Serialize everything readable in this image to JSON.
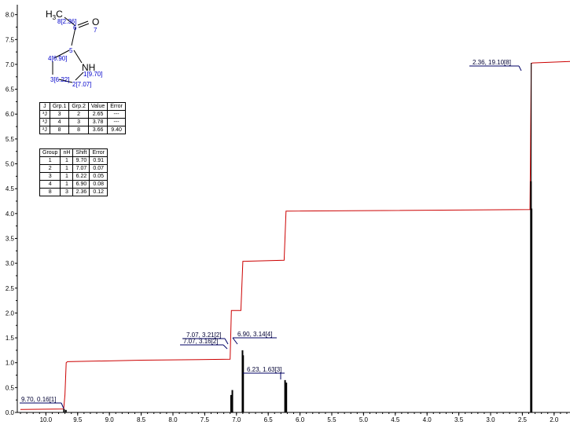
{
  "chart_data": {
    "type": "line",
    "title": "",
    "xlabel": "",
    "ylabel": "",
    "x_axis": {
      "min": 1.75,
      "max": 10.45,
      "reversed": true,
      "ticks": [
        "10.0",
        "9.5",
        "9.0",
        "8.5",
        "8.0",
        "7.5",
        "7.0",
        "6.5",
        "6.0",
        "5.5",
        "5.0",
        "4.5",
        "4.0",
        "3.5",
        "3.0",
        "2.5",
        "2.0"
      ]
    },
    "y_axis": {
      "min": 0,
      "max": 8.2,
      "ticks": [
        "0.0",
        "0.5",
        "1.0",
        "1.5",
        "2.0",
        "2.5",
        "3.0",
        "3.5",
        "4.0",
        "4.5",
        "5.0",
        "5.5",
        "6.0",
        "6.5",
        "7.0",
        "7.5",
        "8.0"
      ]
    },
    "peaks": [
      {
        "x": 9.7,
        "y": 0.16,
        "label": "9.70, 0.16[1]"
      },
      {
        "x": 7.07,
        "y": 3.21,
        "label": "7.07, 3.21[2]"
      },
      {
        "x": 7.07,
        "y": 3.16,
        "label": "7.07, 3.16[2]"
      },
      {
        "x": 6.9,
        "y": 3.14,
        "label": "6.90, 3.14[4]"
      },
      {
        "x": 6.23,
        "y": 1.63,
        "label": "6.23, 1.63[3]"
      },
      {
        "x": 2.36,
        "y": 19.1,
        "label": "2.36, 19.10[8]"
      }
    ],
    "spectrum_lines": [
      {
        "x": 9.715,
        "y": 0.07
      },
      {
        "x": 9.685,
        "y": 0.05
      },
      {
        "x": 7.085,
        "y": 0.35
      },
      {
        "x": 7.065,
        "y": 0.45
      },
      {
        "x": 6.905,
        "y": 1.25
      },
      {
        "x": 6.895,
        "y": 1.15
      },
      {
        "x": 6.235,
        "y": 0.65
      },
      {
        "x": 6.215,
        "y": 0.6
      },
      {
        "x": 2.365,
        "y": 4.65
      },
      {
        "x": 2.355,
        "y": 4.1
      }
    ],
    "integral_curve": [
      [
        10.4,
        0.06
      ],
      [
        9.72,
        0.07
      ],
      [
        9.7,
        0.35
      ],
      [
        9.68,
        1.0
      ],
      [
        9.66,
        1.02
      ],
      [
        8.5,
        1.05
      ],
      [
        7.1,
        1.07
      ],
      [
        7.08,
        2.05
      ],
      [
        7.05,
        2.05
      ],
      [
        6.93,
        2.05
      ],
      [
        6.9,
        3.04
      ],
      [
        6.88,
        3.04
      ],
      [
        6.25,
        3.06
      ],
      [
        6.22,
        4.05
      ],
      [
        6.2,
        4.05
      ],
      [
        2.38,
        4.08
      ],
      [
        2.36,
        7.02
      ],
      [
        2.34,
        7.03
      ],
      [
        1.75,
        7.06
      ]
    ]
  },
  "molecule": {
    "atoms": [
      {
        "label": "H",
        "sub": "3",
        "rest": "C"
      },
      {
        "label": "O"
      },
      {
        "label": "NH"
      }
    ],
    "annotations": [
      "8[2.36]",
      "6",
      "7",
      "5",
      "4[6.90]",
      "1[9.70]",
      "3[6.22]",
      "2[7.07]"
    ]
  },
  "coupling_table": {
    "headers": [
      "J",
      "Grp.1",
      "Grp.2",
      "Value",
      "Error"
    ],
    "rows": [
      [
        "³J",
        "3",
        "2",
        "2.65",
        "---"
      ],
      [
        "³J",
        "4",
        "3",
        "3.78",
        "---"
      ],
      [
        "²J",
        "8",
        "8",
        "3.66",
        "9.40"
      ]
    ]
  },
  "group_table": {
    "headers": [
      "Group",
      "nH",
      "Shift",
      "Error"
    ],
    "rows": [
      [
        "1",
        "1",
        "9.70",
        "0.91"
      ],
      [
        "2",
        "1",
        "7.07",
        "0.07"
      ],
      [
        "3",
        "1",
        "6.22",
        "0.05"
      ],
      [
        "4",
        "1",
        "6.90",
        "0.08"
      ],
      [
        "8",
        "3",
        "2.36",
        "0.12"
      ]
    ]
  },
  "colors": {
    "integral": "#cc0000",
    "spectrum": "#000000",
    "label_line": "#000066",
    "atom_numbers": "#0000cc"
  }
}
